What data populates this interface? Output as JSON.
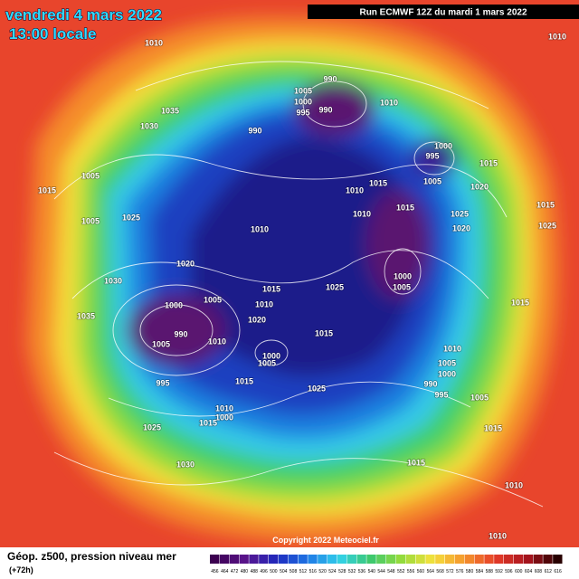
{
  "header": {
    "title": "vendredi 4 mars 2022",
    "time": "13:00 locale",
    "run": "Run ECMWF 12Z du mardi 1 mars 2022"
  },
  "footer": {
    "caption": "Géop. z500, pression niveau mer",
    "lead": "(+72h)",
    "copyright": "Copyright 2022 Meteociel.fr"
  },
  "scale": {
    "labels": [
      "456",
      "464",
      "472",
      "480",
      "488",
      "496",
      "500",
      "504",
      "508",
      "512",
      "516",
      "520",
      "524",
      "528",
      "532",
      "536",
      "540",
      "544",
      "548",
      "552",
      "556",
      "560",
      "564",
      "568",
      "572",
      "576",
      "580",
      "584",
      "588",
      "592",
      "596",
      "600",
      "604",
      "608",
      "612",
      "616"
    ]
  },
  "isobars": {
    "labels": [
      "1010",
      "1035",
      "1030",
      "1015",
      "1005",
      "1005",
      "1025",
      "1020",
      "1030",
      "1035",
      "1000",
      "1005",
      "990",
      "1005",
      "1010",
      "995",
      "1015",
      "1025",
      "1030",
      "1005",
      "1000",
      "995",
      "990",
      "990",
      "1010",
      "990",
      "1000",
      "995",
      "1005",
      "1015",
      "1020",
      "1010",
      "1015",
      "1010",
      "1010",
      "1015",
      "1025",
      "1020",
      "1000",
      "1005",
      "1015",
      "1025",
      "1010",
      "1020",
      "1015",
      "1000",
      "1005",
      "1025",
      "1010",
      "1005",
      "1000",
      "990",
      "995",
      "1005",
      "1015",
      "1015",
      "1010",
      "1010",
      "1015",
      "1025",
      "1015",
      "1010",
      "1000",
      "1010",
      "1015"
    ]
  }
}
